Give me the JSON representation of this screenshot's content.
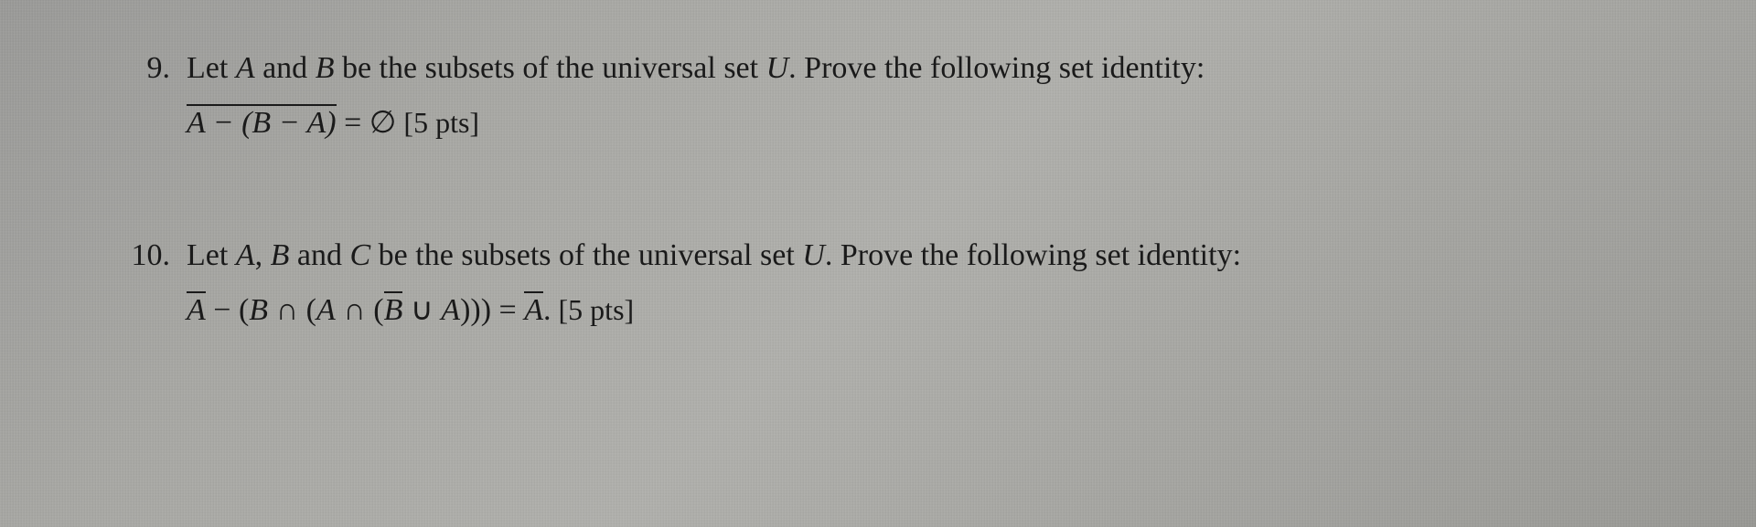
{
  "background_color": "#a6a6a2",
  "text_color": "#1a1a1a",
  "font_family": "Times New Roman",
  "base_font_size_pt": 26,
  "problems": {
    "p9": {
      "number": "9.",
      "prompt_prefix": "Let ",
      "A": "A",
      "and1": " and ",
      "B": "B",
      "prompt_mid": " be the subsets of the universal set ",
      "U": "U",
      "prompt_suffix": ". Prove the following set identity:",
      "eq_lhs_over": "A − (B − A)",
      "eq_eqsym": " = ",
      "eq_rhs": "∅",
      "points": " [5 pts]"
    },
    "p10": {
      "number": "10.",
      "prompt_prefix": "Let ",
      "A": "A",
      "comma": ", ",
      "B": "B",
      "and1": " and ",
      "C": "C",
      "prompt_mid": " be the subsets of the universal set ",
      "U": "U",
      "prompt_suffix": ". Prove the following set identity:",
      "eq_over1": "A",
      "eq_minus": " −  (",
      "eq_B": "B",
      "eq_cap1": " ∩ (",
      "eq_A2": "A",
      "eq_cap2": " ∩ (",
      "eq_over2": "B",
      "eq_cup": " ∪ ",
      "eq_A3": "A",
      "eq_close": ")))  = ",
      "eq_over3": "A",
      "eq_period": ".",
      "points": " [5 pts]"
    }
  }
}
